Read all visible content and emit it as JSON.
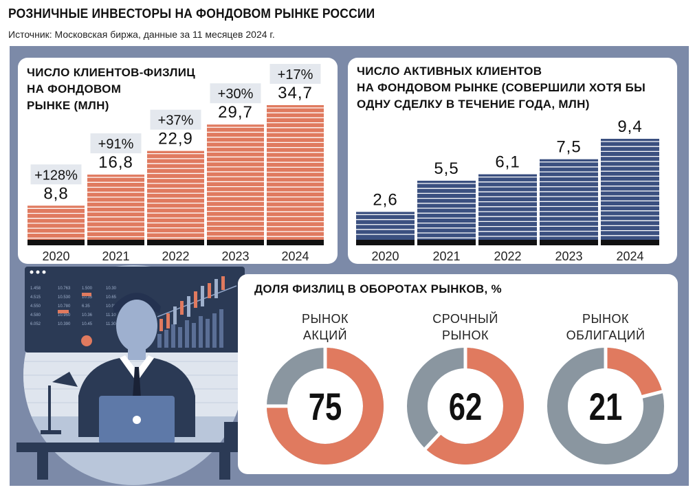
{
  "title": "РОЗНИЧНЫЕ ИНВЕСТОРЫ НА ФОНДОВОМ РЫНКЕ РОССИИ",
  "subtitle": "Источник: Московская биржа, данные за 11 месяцев 2024 г.",
  "colors": {
    "orange": "#e07a5f",
    "navy": "#3b5080",
    "gray": "#8a96a0",
    "frame": "#7c8aa8",
    "badge_bg": "#e4e8ee"
  },
  "illustration": {
    "description_icon": "investor-at-laptop-illustration"
  },
  "chart_data": [
    {
      "type": "bar",
      "title": "ЧИСЛО КЛИЕНТОВ-ФИЗЛИЦ\nНА ФОНДОВОМ\nРЫНКЕ (МЛН)",
      "categories": [
        "2020",
        "2021",
        "2022",
        "2023",
        "2024"
      ],
      "values": [
        8.8,
        16.8,
        22.9,
        29.7,
        34.7
      ],
      "value_labels": [
        "8,8",
        "16,8",
        "22,9",
        "29,7",
        "34,7"
      ],
      "growth_labels": [
        "+128%",
        "+91%",
        "+37%",
        "+30%",
        "+17%"
      ],
      "ylim": [
        0,
        34.7
      ],
      "color": "#e07a5f"
    },
    {
      "type": "bar",
      "title": "ЧИСЛО АКТИВНЫХ КЛИЕНТОВ\nНА ФОНДОВОМ РЫНКЕ (СОВЕРШИЛИ ХОТЯ БЫ\nОДНУ СДЕЛКУ В ТЕЧЕНИЕ ГОДА, МЛН)",
      "categories": [
        "2020",
        "2021",
        "2022",
        "2023",
        "2024"
      ],
      "values": [
        2.6,
        5.5,
        6.1,
        7.5,
        9.4
      ],
      "value_labels": [
        "2,6",
        "5,5",
        "6,1",
        "7,5",
        "9,4"
      ],
      "ylim": [
        0,
        9.4
      ],
      "color": "#3b5080"
    },
    {
      "type": "pie",
      "title": "ДОЛЯ ФИЗЛИЦ В ОБОРОТАХ РЫНКОВ, %",
      "categories": [
        "РЫНОК\nАКЦИЙ",
        "СРОЧНЫЙ\nРЫНОК",
        "РЫНОК\nОБЛИГАЦИЙ"
      ],
      "values": [
        75,
        62,
        21
      ],
      "value_labels": [
        "75",
        "62",
        "21"
      ],
      "colors": {
        "share": "#e07a5f",
        "rest": "#8a96a0"
      }
    }
  ]
}
